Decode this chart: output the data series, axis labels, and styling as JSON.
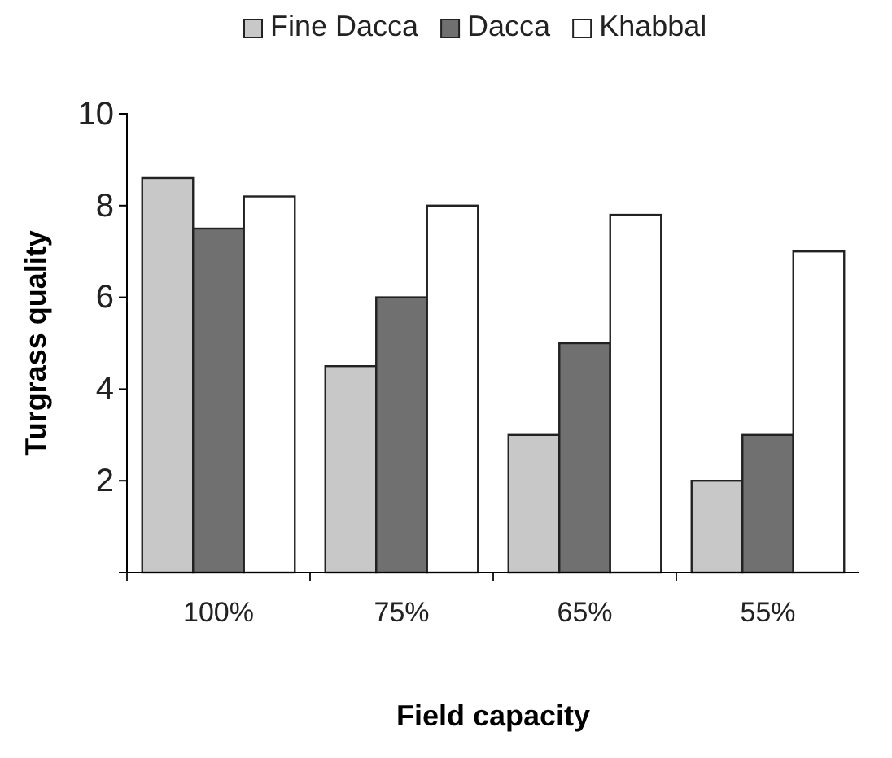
{
  "chart_data": {
    "type": "bar",
    "xlabel": "Field capacity",
    "ylabel": "Turgrass quality",
    "categories": [
      "100%",
      "75%",
      "65%",
      "55%"
    ],
    "series": [
      {
        "name": "Fine Dacca",
        "color": "#c8c8c8",
        "values": [
          8.6,
          4.5,
          3,
          2
        ]
      },
      {
        "name": "Dacca",
        "color": "#707070",
        "values": [
          7.5,
          6,
          5,
          3
        ]
      },
      {
        "name": "Khabbal",
        "color": "#ffffff",
        "values": [
          8.2,
          8,
          7.8,
          7
        ]
      }
    ],
    "ylim": [
      0,
      10
    ],
    "yticks": [
      {
        "value": 0,
        "label": null
      },
      2,
      4,
      6,
      8,
      10
    ],
    "grid": false,
    "legend": "top"
  }
}
